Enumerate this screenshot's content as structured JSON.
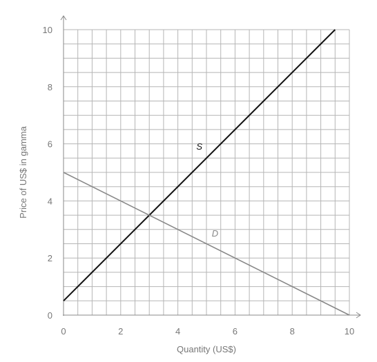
{
  "chart_data": {
    "type": "line",
    "xlabel": "Quantity (US$)",
    "ylabel": "Price of US$ in gamma",
    "xlim": [
      0,
      10
    ],
    "ylim": [
      0,
      10
    ],
    "x_ticks": [
      "0",
      "2",
      "4",
      "6",
      "8",
      "10"
    ],
    "y_ticks": [
      "0",
      "2",
      "4",
      "6",
      "8",
      "10"
    ],
    "grid": true,
    "grid_step": 0.5,
    "series": [
      {
        "name": "S",
        "color": "#111111",
        "x": [
          0,
          9.5
        ],
        "y": [
          0.5,
          10
        ],
        "label_at": [
          4.75,
          5.8
        ]
      },
      {
        "name": "D",
        "color": "#888888",
        "x": [
          0,
          10
        ],
        "y": [
          5,
          0
        ],
        "label_at": [
          5.3,
          2.75
        ]
      }
    ]
  }
}
